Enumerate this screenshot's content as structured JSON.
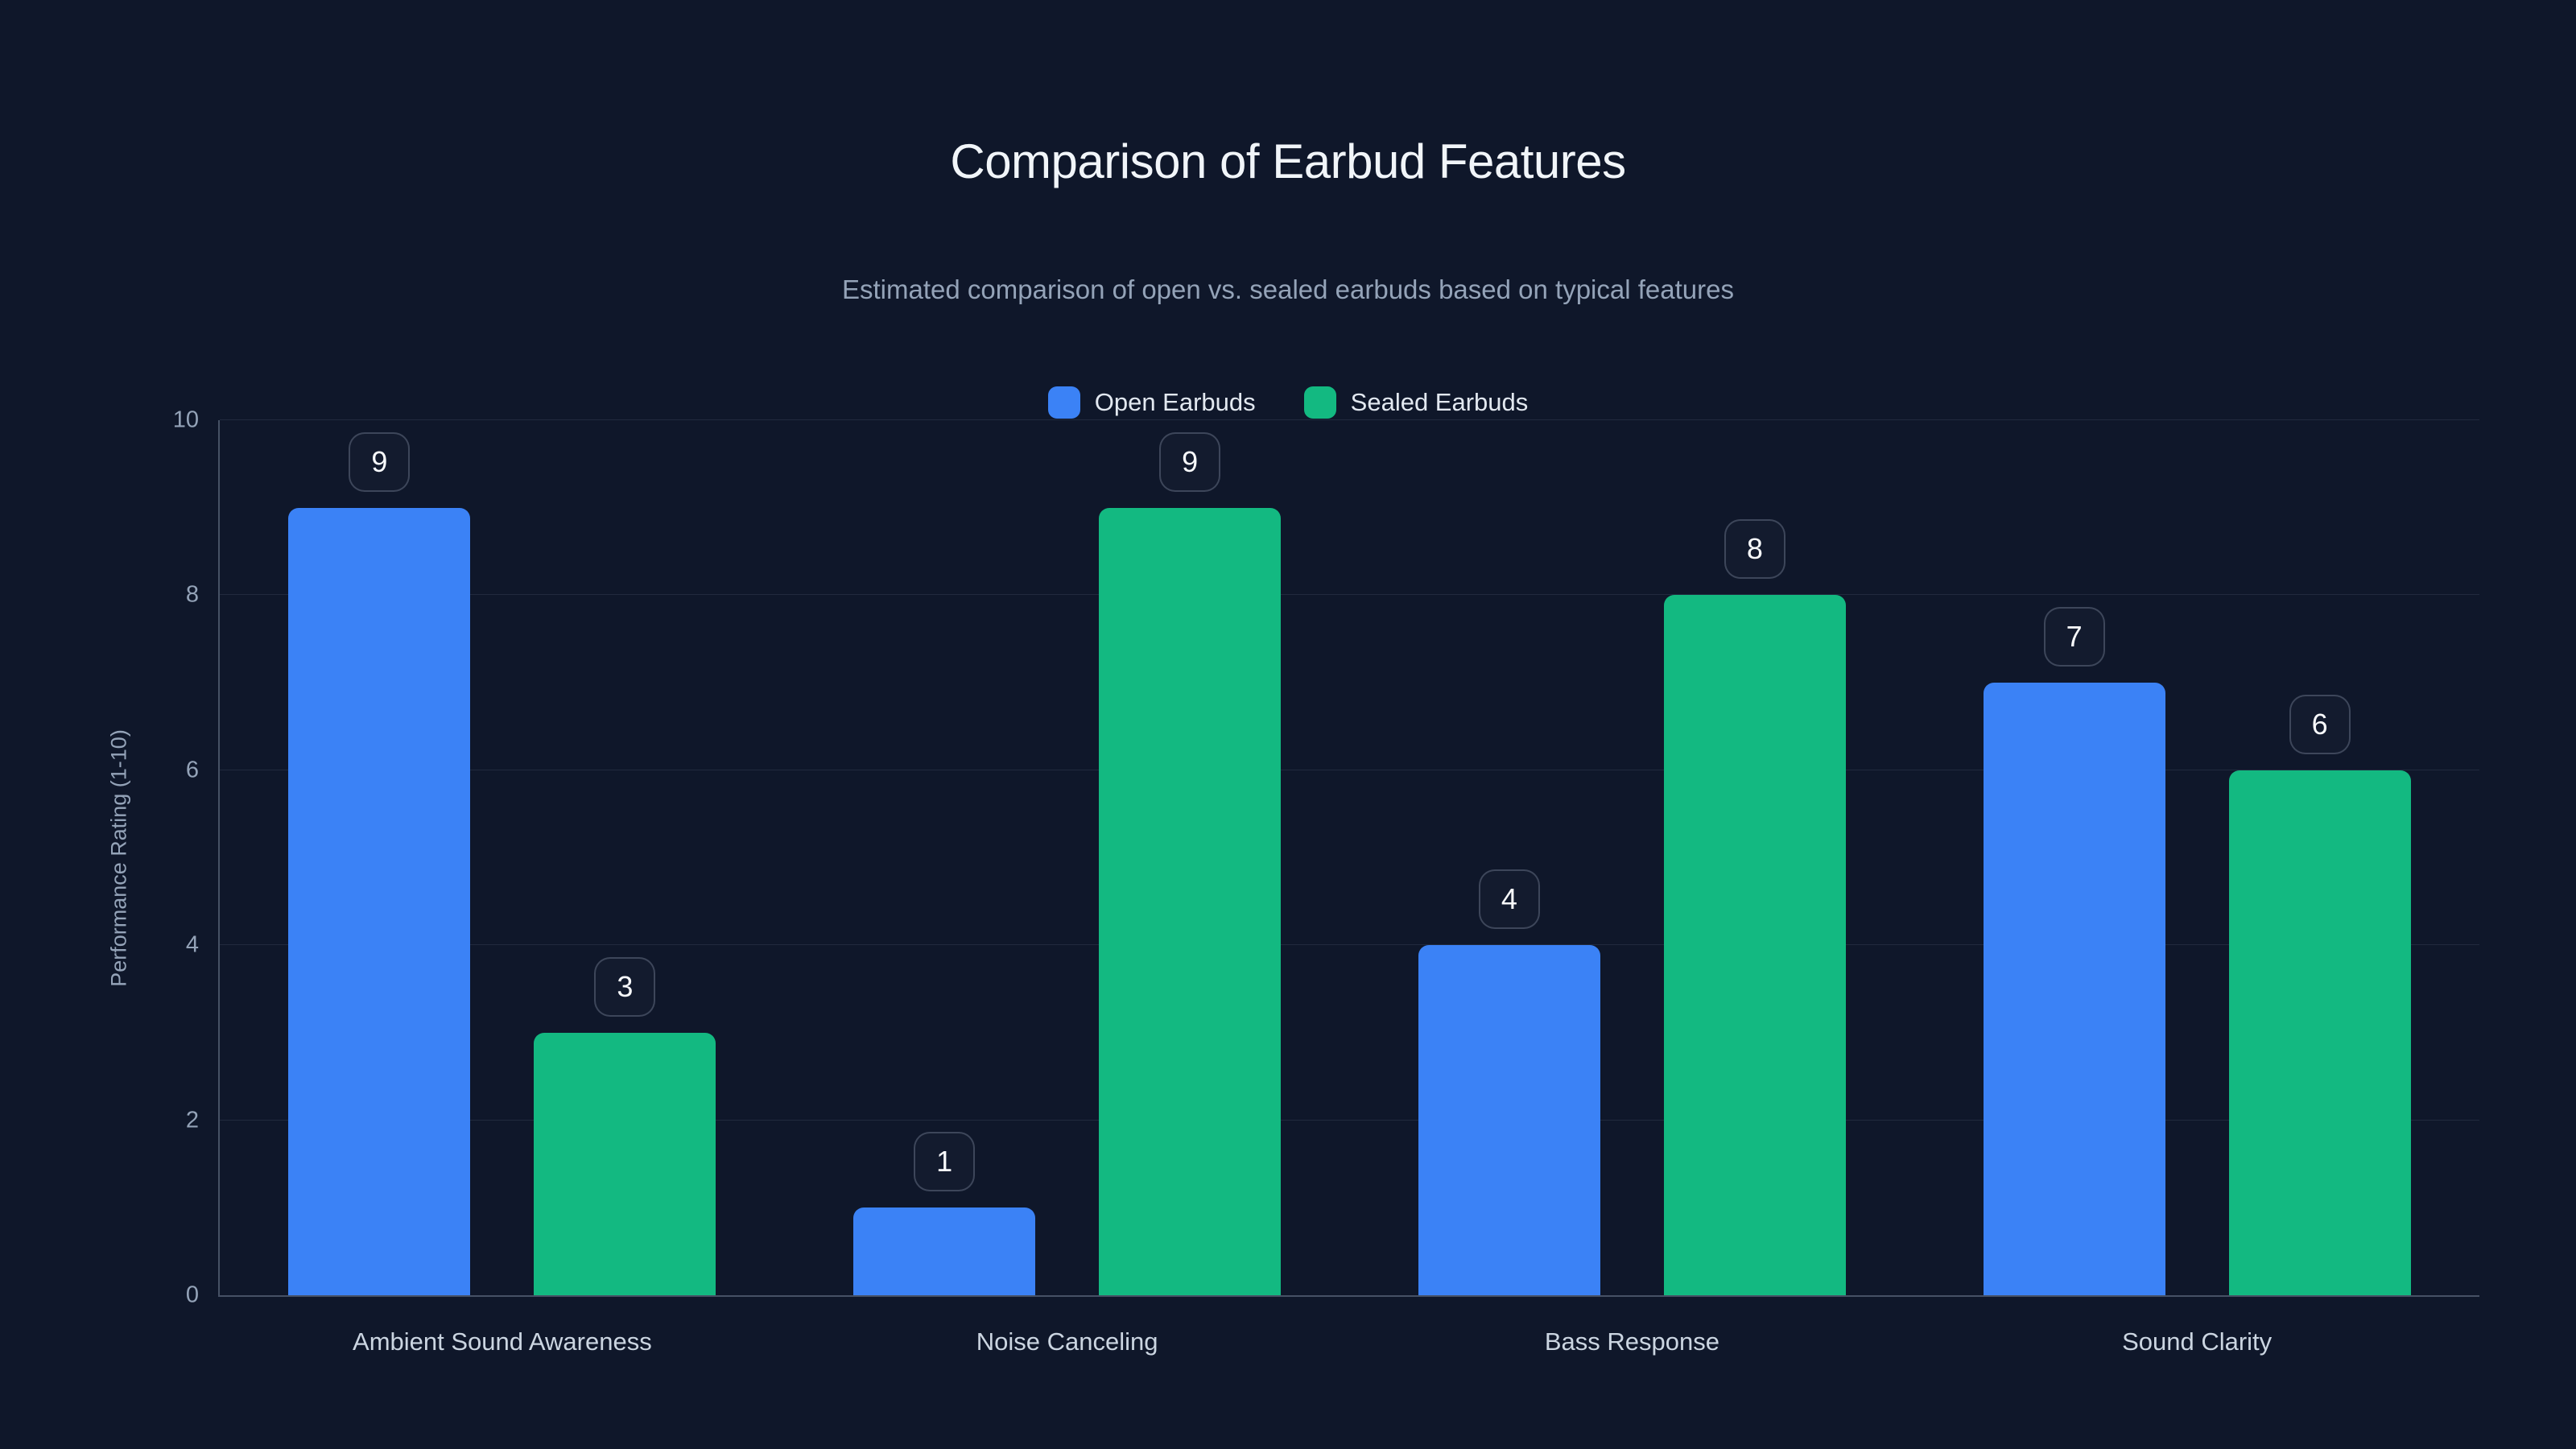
{
  "title": "Comparison of Earbud Features",
  "subtitle": "Estimated comparison of open vs. sealed earbuds based on typical features",
  "legend": {
    "items": [
      {
        "label": "Open Earbuds",
        "color": "#3b82f6"
      },
      {
        "label": "Sealed Earbuds",
        "color": "#13b981"
      }
    ]
  },
  "y_axis": {
    "title": "Performance Rating (1-10)",
    "ticks": [
      0,
      2,
      4,
      6,
      8,
      10
    ]
  },
  "chart_data": {
    "type": "bar",
    "title": "Comparison of Earbud Features",
    "subtitle": "Estimated comparison of open vs. sealed earbuds based on typical features",
    "categories": [
      "Ambient Sound Awareness",
      "Noise Canceling",
      "Bass Response",
      "Sound Clarity"
    ],
    "series": [
      {
        "name": "Open Earbuds",
        "color": "#3b82f6",
        "values": [
          9,
          1,
          4,
          7
        ]
      },
      {
        "name": "Sealed Earbuds",
        "color": "#13b981",
        "values": [
          3,
          9,
          8,
          6
        ]
      }
    ],
    "xlabel": "",
    "ylabel": "Performance Rating (1-10)",
    "ylim": [
      0,
      10
    ],
    "grid": true,
    "legend_position": "top",
    "value_labels": true,
    "colors": {
      "background": "#0f172a",
      "title_text": "#f1f5f9",
      "subtitle_text": "#94a3b8",
      "tick_text": "#94a3b8",
      "category_text": "#cbd5e1",
      "gridline": "rgba(148,163,184,0.14)",
      "axis_line": "rgba(148,163,184,0.42)",
      "value_chip_border": "rgba(148,163,184,0.32)",
      "value_chip_text": "#f8fafc"
    }
  }
}
